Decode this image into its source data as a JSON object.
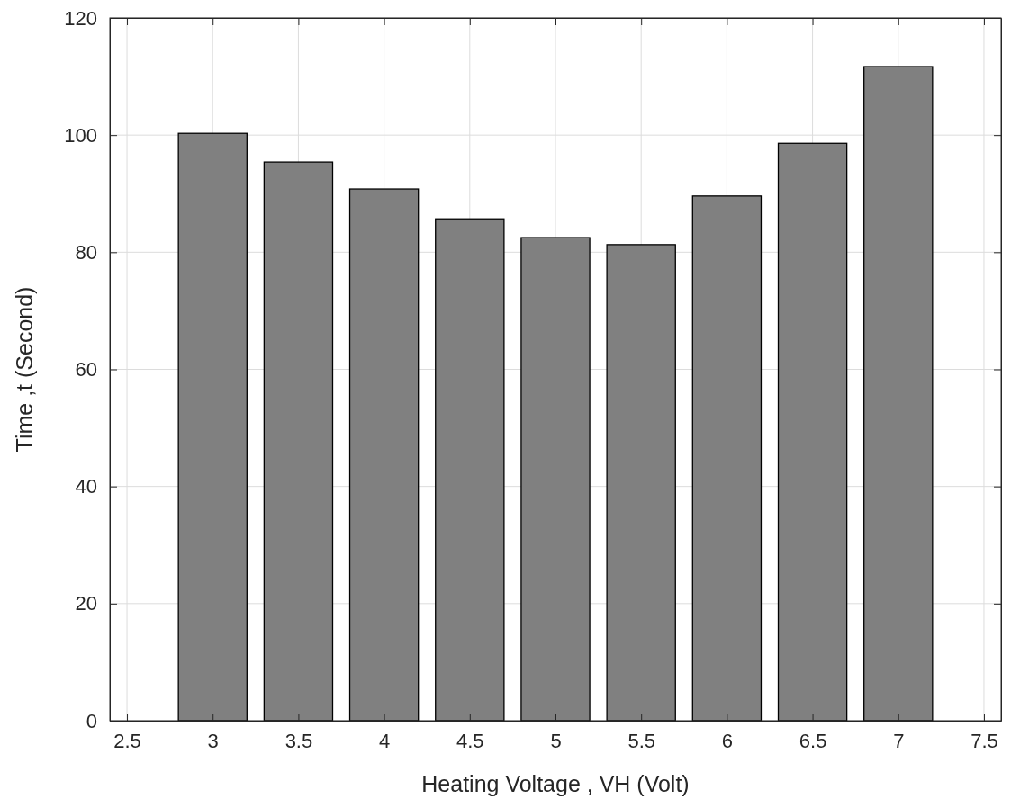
{
  "chart_data": {
    "type": "bar",
    "xlabel": "Heating Voltage , VH (Volt)",
    "ylabel": "Time ,t (Second)",
    "x": [
      3,
      3.5,
      4,
      4.5,
      5,
      5.5,
      6,
      6.5,
      7
    ],
    "values": [
      100.3,
      95.4,
      90.8,
      85.7,
      82.5,
      81.3,
      89.6,
      98.6,
      111.7
    ],
    "color": "#808080",
    "xlim": [
      2.4,
      7.6
    ],
    "xticks": [
      {
        "value": 2.5,
        "label": "2.5"
      },
      3,
      {
        "value": 3.5,
        "label": "3.5"
      },
      4,
      {
        "value": 4.5,
        "label": "4.5"
      },
      5,
      {
        "value": 5.5,
        "label": "5.5"
      },
      6,
      {
        "value": 6.5,
        "label": "6.5"
      },
      7,
      {
        "value": 7.5,
        "label": "7.5"
      }
    ],
    "ylim": [
      0,
      120
    ],
    "yticks": [
      0,
      20,
      40,
      60,
      80,
      100,
      120
    ],
    "grid": true
  }
}
